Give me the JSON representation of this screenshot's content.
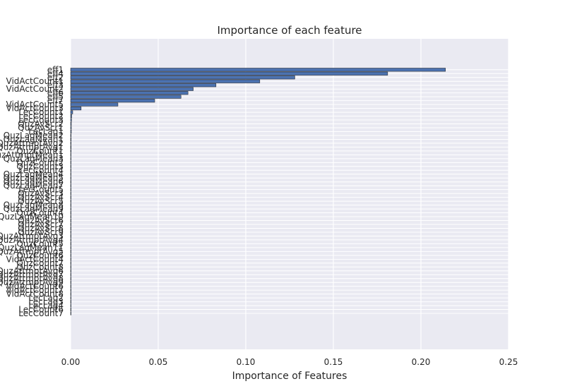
{
  "chart_data": {
    "type": "bar",
    "orientation": "horizontal",
    "title": "Importance of each feature",
    "xlabel": "Importance of Features",
    "ylabel": "",
    "xlim": [
      0.0,
      0.25
    ],
    "x_ticks": [
      "0.00",
      "0.05",
      "0.10",
      "0.15",
      "0.20",
      "0.25"
    ],
    "grid": true,
    "style": "seaborn-darkgrid",
    "colors": {
      "background": "#eaeaf2",
      "grid": "#ffffff",
      "bar": "#4c72b0",
      "bar_edge": "#1a1a1a",
      "text": "#262626"
    },
    "categories": [
      "eff1",
      "eff4",
      "eff2",
      "VidActCount1",
      "eff3",
      "VidActCount2",
      "eff6",
      "eff5",
      "eff7",
      "VidActCount5",
      "VidActCount3",
      "LecCount1",
      "LecCount2",
      "LecCount3",
      "QuzAvScr2",
      "QuzAvScr1",
      "LecLag1",
      "QuzLagMean2",
      "QuzLagMean1",
      "QuzAttmptAvg2",
      "QuzAttmptAvg1",
      "QuzCount1",
      "QuzAttmptMean1",
      "QuzLagMean3",
      "QuzCount2",
      "QuzCount3",
      "LecCount4",
      "QuzLagMean4",
      "QuzLagMean5",
      "QuzLagMean6",
      "QuzLagMean7",
      "LecCount5",
      "QuzAvScr3",
      "QuzAvScr4",
      "QuzAvScr5",
      "QuzLagMean8",
      "QuzLagMean9",
      "QuzCount4",
      "QuzLagMean10",
      "QuzAvScr6",
      "QuzAvScr7",
      "QuzAvScr8",
      "QuzAvScr9",
      "QuzAttmptAvg3",
      "QuzAttmptAvg4",
      "QuzCount5",
      "QuzLagMean11",
      "QuzAttmptAvg5",
      "QuzCount6",
      "VidActCount4",
      "QuzCount7",
      "QuzCount8",
      "QuzAttmptAvg6",
      "QuzAttmptAvg7",
      "QuzAttmptAvg8",
      "QuzAttmptAvg9",
      "VidActCount6",
      "VidActCount7",
      "VidActCount8",
      "LecLag2",
      "LecLag3",
      "LecLag4",
      "LecCount6",
      "LecCount7"
    ],
    "values": [
      0.214,
      0.181,
      0.128,
      0.108,
      0.083,
      0.07,
      0.067,
      0.063,
      0.048,
      0.027,
      0.006,
      0.0012,
      0.0006,
      0.0005,
      0.0004,
      0.0004,
      0.0004,
      0.0003,
      0.0003,
      0.0003,
      0.0003,
      0.0003,
      0.0002,
      0.0002,
      0.0002,
      0.0002,
      0.0001,
      0.0001,
      0.0001,
      0.0001,
      0.0001,
      0.0001,
      0.0001,
      0.0001,
      0.0001,
      0.0001,
      0.0001,
      0.0001,
      0.0001,
      0.0001,
      0.0001,
      0.0001,
      0.0001,
      0.0001,
      0.0001,
      0.0001,
      0.0001,
      0.0001,
      0.0001,
      0.0001,
      0.0001,
      0.0001,
      0.0001,
      0.0001,
      0.0001,
      0.0001,
      0.0001,
      0.0001,
      0.0001,
      0.0001,
      0.0001,
      0.0001,
      0.0001,
      0.0001
    ]
  }
}
